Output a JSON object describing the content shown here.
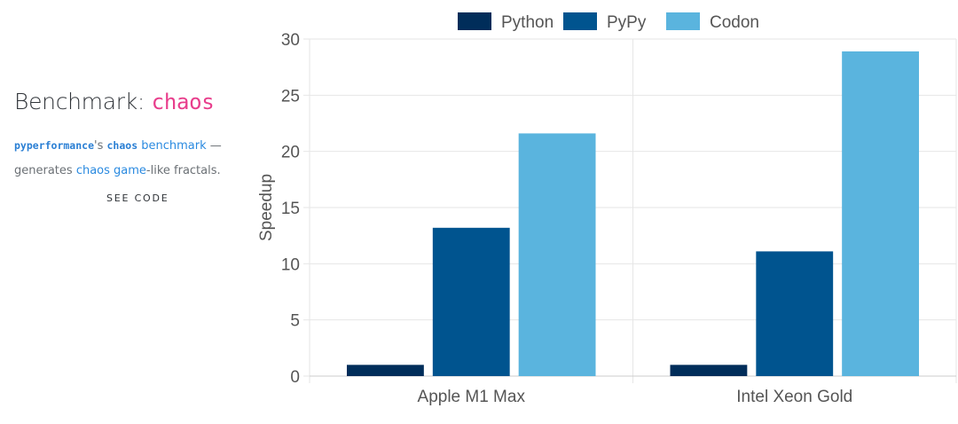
{
  "benchmark": {
    "title_prefix": "Benchmark: ",
    "name": "chaos",
    "desc_code1": "pyperformance",
    "desc_text1": "'s ",
    "desc_code2": "chaos",
    "desc_text2": " ",
    "desc_link1": "benchmark",
    "desc_text3": " — generates ",
    "desc_link2": "chaos game",
    "desc_text4": "-like fractals.",
    "see_code": "SEE CODE"
  },
  "colors": {
    "python": "#002d5a",
    "pypy": "#00548f",
    "codon": "#5ab4de"
  },
  "chart_data": {
    "type": "bar",
    "categories": [
      "Apple M1 Max",
      "Intel Xeon Gold"
    ],
    "series": [
      {
        "name": "Python",
        "color": "#002d5a",
        "values": [
          1,
          1
        ]
      },
      {
        "name": "PyPy",
        "color": "#00548f",
        "values": [
          13.2,
          11.1
        ]
      },
      {
        "name": "Codon",
        "color": "#5ab4de",
        "values": [
          21.6,
          28.9
        ]
      }
    ],
    "title": "",
    "xlabel": "",
    "ylabel": "Speedup",
    "ylim": [
      0,
      30
    ],
    "yticks": [
      0,
      5,
      10,
      15,
      20,
      25,
      30
    ],
    "grid": true,
    "legend_position": "top-center"
  }
}
